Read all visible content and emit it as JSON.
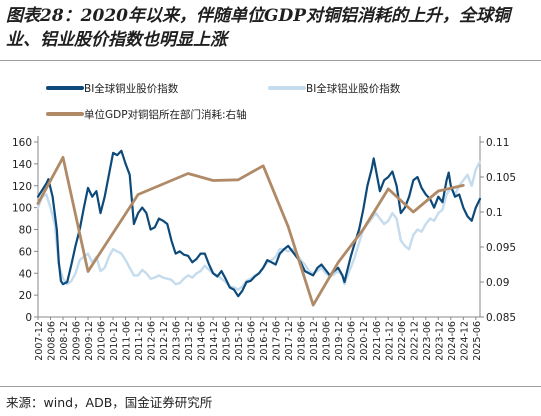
{
  "title": "图表28：2020年以来，伴随单位GDP对铜铝消耗的上升，全球铜业、铝业股价指数也明显上涨",
  "source": "来源：wind，ADB，国金证券研究所",
  "colors": {
    "copper": "#0d4a7a",
    "aluminum": "#c4dcee",
    "consumption": "#b08a66",
    "axis": "#888888"
  },
  "chart_data": {
    "type": "line",
    "title": "",
    "legend": [
      "BI全球铜业股价指数",
      "BI全球铝业股价指数",
      "单位GDP对铜铝所在部门消耗:右轴"
    ],
    "legend_position": "top",
    "grid": false,
    "y_left": {
      "min": 0,
      "max": 160,
      "ticks": [
        "0",
        "20",
        "40",
        "60",
        "80",
        "100",
        "120",
        "140",
        "160"
      ]
    },
    "y_right": {
      "min": 0.085,
      "max": 0.11,
      "ticks": [
        "0.085",
        "0.09",
        "0.095",
        "0.1",
        "0.105",
        "0.11"
      ]
    },
    "x_ticks": [
      "2007-12",
      "2008-06",
      "2008-12",
      "2009-06",
      "2009-12",
      "2010-06",
      "2010-12",
      "2011-06",
      "2011-12",
      "2012-06",
      "2012-12",
      "2013-06",
      "2013-12",
      "2014-06",
      "2014-12",
      "2015-06",
      "2015-12",
      "2016-06",
      "2016-12",
      "2017-06",
      "2017-12",
      "2018-06",
      "2018-12",
      "2019-06",
      "2019-12",
      "2020-06",
      "2020-12",
      "2021-06",
      "2021-12",
      "2022-06",
      "2022-12",
      "2023-06",
      "2023-12",
      "2024-06",
      "2024-12",
      "2025-06"
    ],
    "x_range": [
      "2007-12",
      "2025-08"
    ],
    "series": [
      {
        "name": "BI全球铜业股价指数",
        "axis": "left",
        "points": [
          [
            "2007-12",
            110
          ],
          [
            "2008-02",
            116
          ],
          [
            "2008-04",
            122
          ],
          [
            "2008-05",
            126
          ],
          [
            "2008-07",
            110
          ],
          [
            "2008-09",
            80
          ],
          [
            "2008-10",
            50
          ],
          [
            "2008-11",
            33
          ],
          [
            "2008-12",
            30
          ],
          [
            "2009-02",
            32
          ],
          [
            "2009-04",
            48
          ],
          [
            "2009-06",
            65
          ],
          [
            "2009-08",
            80
          ],
          [
            "2009-10",
            100
          ],
          [
            "2009-12",
            118
          ],
          [
            "2010-02",
            110
          ],
          [
            "2010-04",
            115
          ],
          [
            "2010-06",
            95
          ],
          [
            "2010-08",
            110
          ],
          [
            "2010-10",
            130
          ],
          [
            "2010-12",
            150
          ],
          [
            "2011-02",
            148
          ],
          [
            "2011-04",
            152
          ],
          [
            "2011-06",
            140
          ],
          [
            "2011-08",
            130
          ],
          [
            "2011-10",
            85
          ],
          [
            "2011-12",
            95
          ],
          [
            "2012-02",
            100
          ],
          [
            "2012-04",
            95
          ],
          [
            "2012-06",
            80
          ],
          [
            "2012-08",
            82
          ],
          [
            "2012-10",
            90
          ],
          [
            "2012-12",
            88
          ],
          [
            "2013-02",
            85
          ],
          [
            "2013-04",
            70
          ],
          [
            "2013-06",
            58
          ],
          [
            "2013-08",
            60
          ],
          [
            "2013-10",
            57
          ],
          [
            "2013-12",
            56
          ],
          [
            "2014-02",
            50
          ],
          [
            "2014-04",
            53
          ],
          [
            "2014-06",
            58
          ],
          [
            "2014-08",
            58
          ],
          [
            "2014-10",
            48
          ],
          [
            "2014-12",
            40
          ],
          [
            "2015-02",
            37
          ],
          [
            "2015-04",
            42
          ],
          [
            "2015-06",
            35
          ],
          [
            "2015-08",
            27
          ],
          [
            "2015-10",
            25
          ],
          [
            "2015-12",
            19
          ],
          [
            "2016-02",
            24
          ],
          [
            "2016-04",
            32
          ],
          [
            "2016-06",
            33
          ],
          [
            "2016-08",
            37
          ],
          [
            "2016-10",
            40
          ],
          [
            "2016-12",
            45
          ],
          [
            "2017-02",
            52
          ],
          [
            "2017-04",
            50
          ],
          [
            "2017-06",
            48
          ],
          [
            "2017-08",
            58
          ],
          [
            "2017-10",
            62
          ],
          [
            "2017-12",
            65
          ],
          [
            "2018-02",
            60
          ],
          [
            "2018-04",
            55
          ],
          [
            "2018-06",
            50
          ],
          [
            "2018-08",
            42
          ],
          [
            "2018-10",
            40
          ],
          [
            "2018-12",
            38
          ],
          [
            "2019-02",
            45
          ],
          [
            "2019-04",
            48
          ],
          [
            "2019-06",
            43
          ],
          [
            "2019-08",
            38
          ],
          [
            "2019-10",
            42
          ],
          [
            "2019-12",
            45
          ],
          [
            "2020-02",
            38
          ],
          [
            "2020-03",
            32
          ],
          [
            "2020-04",
            40
          ],
          [
            "2020-06",
            55
          ],
          [
            "2020-08",
            68
          ],
          [
            "2020-10",
            80
          ],
          [
            "2020-12",
            98
          ],
          [
            "2021-02",
            120
          ],
          [
            "2021-04",
            135
          ],
          [
            "2021-05",
            145
          ],
          [
            "2021-06",
            135
          ],
          [
            "2021-08",
            115
          ],
          [
            "2021-10",
            125
          ],
          [
            "2021-12",
            128
          ],
          [
            "2022-02",
            133
          ],
          [
            "2022-04",
            120
          ],
          [
            "2022-06",
            95
          ],
          [
            "2022-08",
            100
          ],
          [
            "2022-10",
            110
          ],
          [
            "2022-12",
            125
          ],
          [
            "2023-02",
            128
          ],
          [
            "2023-04",
            118
          ],
          [
            "2023-06",
            112
          ],
          [
            "2023-08",
            108
          ],
          [
            "2023-10",
            100
          ],
          [
            "2023-12",
            110
          ],
          [
            "2024-02",
            105
          ],
          [
            "2024-04",
            125
          ],
          [
            "2024-05",
            132
          ],
          [
            "2024-06",
            120
          ],
          [
            "2024-08",
            110
          ],
          [
            "2024-10",
            112
          ],
          [
            "2024-12",
            100
          ],
          [
            "2025-02",
            92
          ],
          [
            "2025-04",
            88
          ],
          [
            "2025-06",
            100
          ],
          [
            "2025-08",
            108
          ]
        ]
      },
      {
        "name": "BI全球铝业股价指数",
        "axis": "left",
        "points": [
          [
            "2007-12",
            100
          ],
          [
            "2008-02",
            110
          ],
          [
            "2008-04",
            112
          ],
          [
            "2008-06",
            100
          ],
          [
            "2008-08",
            85
          ],
          [
            "2008-10",
            48
          ],
          [
            "2008-12",
            35
          ],
          [
            "2009-02",
            30
          ],
          [
            "2009-04",
            33
          ],
          [
            "2009-06",
            40
          ],
          [
            "2009-08",
            52
          ],
          [
            "2009-10",
            55
          ],
          [
            "2009-12",
            58
          ],
          [
            "2010-02",
            50
          ],
          [
            "2010-04",
            55
          ],
          [
            "2010-06",
            42
          ],
          [
            "2010-08",
            45
          ],
          [
            "2010-10",
            55
          ],
          [
            "2010-12",
            62
          ],
          [
            "2011-02",
            60
          ],
          [
            "2011-04",
            58
          ],
          [
            "2011-06",
            52
          ],
          [
            "2011-08",
            45
          ],
          [
            "2011-10",
            38
          ],
          [
            "2011-12",
            38
          ],
          [
            "2012-02",
            43
          ],
          [
            "2012-04",
            40
          ],
          [
            "2012-06",
            35
          ],
          [
            "2012-08",
            36
          ],
          [
            "2012-10",
            38
          ],
          [
            "2012-12",
            36
          ],
          [
            "2013-02",
            35
          ],
          [
            "2013-04",
            34
          ],
          [
            "2013-06",
            30
          ],
          [
            "2013-08",
            31
          ],
          [
            "2013-10",
            35
          ],
          [
            "2013-12",
            38
          ],
          [
            "2014-02",
            36
          ],
          [
            "2014-04",
            40
          ],
          [
            "2014-06",
            42
          ],
          [
            "2014-08",
            47
          ],
          [
            "2014-10",
            43
          ],
          [
            "2014-12",
            40
          ],
          [
            "2015-02",
            38
          ],
          [
            "2015-04",
            35
          ],
          [
            "2015-06",
            32
          ],
          [
            "2015-08",
            28
          ],
          [
            "2015-10",
            27
          ],
          [
            "2015-12",
            25
          ],
          [
            "2016-02",
            28
          ],
          [
            "2016-04",
            33
          ],
          [
            "2016-06",
            35
          ],
          [
            "2016-08",
            38
          ],
          [
            "2016-10",
            40
          ],
          [
            "2016-12",
            45
          ],
          [
            "2017-02",
            50
          ],
          [
            "2017-04",
            52
          ],
          [
            "2017-06",
            55
          ],
          [
            "2017-08",
            62
          ],
          [
            "2017-10",
            62
          ],
          [
            "2017-12",
            60
          ],
          [
            "2018-02",
            62
          ],
          [
            "2018-04",
            58
          ],
          [
            "2018-06",
            52
          ],
          [
            "2018-08",
            48
          ],
          [
            "2018-10",
            42
          ],
          [
            "2018-12",
            40
          ],
          [
            "2019-02",
            42
          ],
          [
            "2019-04",
            45
          ],
          [
            "2019-06",
            40
          ],
          [
            "2019-08",
            37
          ],
          [
            "2019-10",
            39
          ],
          [
            "2019-12",
            42
          ],
          [
            "2020-02",
            38
          ],
          [
            "2020-03",
            30
          ],
          [
            "2020-04",
            36
          ],
          [
            "2020-06",
            45
          ],
          [
            "2020-08",
            55
          ],
          [
            "2020-10",
            68
          ],
          [
            "2020-12",
            80
          ],
          [
            "2021-02",
            85
          ],
          [
            "2021-04",
            90
          ],
          [
            "2021-06",
            95
          ],
          [
            "2021-08",
            90
          ],
          [
            "2021-10",
            85
          ],
          [
            "2021-12",
            88
          ],
          [
            "2022-02",
            95
          ],
          [
            "2022-04",
            90
          ],
          [
            "2022-06",
            70
          ],
          [
            "2022-08",
            65
          ],
          [
            "2022-10",
            62
          ],
          [
            "2022-12",
            75
          ],
          [
            "2023-02",
            80
          ],
          [
            "2023-04",
            78
          ],
          [
            "2023-06",
            85
          ],
          [
            "2023-08",
            90
          ],
          [
            "2023-10",
            88
          ],
          [
            "2023-12",
            95
          ],
          [
            "2024-02",
            98
          ],
          [
            "2024-04",
            112
          ],
          [
            "2024-06",
            118
          ],
          [
            "2024-08",
            112
          ],
          [
            "2024-10",
            120
          ],
          [
            "2024-12",
            125
          ],
          [
            "2025-02",
            130
          ],
          [
            "2025-04",
            120
          ],
          [
            "2025-06",
            135
          ],
          [
            "2025-08",
            142
          ]
        ]
      },
      {
        "name": "单位GDP对铜铝所在部门消耗:右轴",
        "axis": "right",
        "points": [
          [
            "2007-12",
            0.1012
          ],
          [
            "2008-12",
            0.1078
          ],
          [
            "2009-12",
            0.0915
          ],
          [
            "2011-12",
            0.1025
          ],
          [
            "2013-12",
            0.1055
          ],
          [
            "2014-12",
            0.1045
          ],
          [
            "2015-12",
            0.1046
          ],
          [
            "2016-12",
            0.1066
          ],
          [
            "2017-12",
            0.0979
          ],
          [
            "2018-12",
            0.0867
          ],
          [
            "2019-12",
            0.0928
          ],
          [
            "2020-12",
            0.0975
          ],
          [
            "2021-12",
            0.1033
          ],
          [
            "2022-12",
            0.1
          ],
          [
            "2023-12",
            0.103
          ],
          [
            "2024-12",
            0.1038
          ]
        ]
      }
    ]
  }
}
